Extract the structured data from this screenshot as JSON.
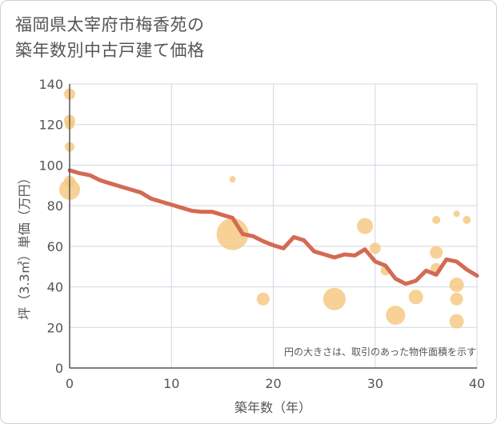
{
  "chart_data": {
    "type": "scatter",
    "title": [
      "福岡県太宰府市梅香苑の",
      "築年数別中古戸建て価格"
    ],
    "xlabel": "築年数（年）",
    "ylabel": "坪（3.3㎡）単価（万円）",
    "xlim": [
      0,
      40
    ],
    "ylim": [
      0,
      140
    ],
    "xticks": [
      0,
      10,
      20,
      30,
      40
    ],
    "yticks": [
      0,
      20,
      40,
      60,
      80,
      100,
      120,
      140
    ],
    "grid": true,
    "note": "円の大きさは、取引のあった物件面積を示す",
    "colors": {
      "bubble": "#f5c77e",
      "line": "#d46a53",
      "grid": "#cfd8e3",
      "axis": "#555555"
    },
    "bubbles": [
      {
        "x": 0,
        "y": 135,
        "size": 5
      },
      {
        "x": 0,
        "y": 122,
        "size": 5
      },
      {
        "x": 0,
        "y": 120,
        "size": 4
      },
      {
        "x": 0,
        "y": 109,
        "size": 4
      },
      {
        "x": 0,
        "y": 92,
        "size": 5
      },
      {
        "x": 0,
        "y": 88,
        "size": 11
      },
      {
        "x": 16,
        "y": 93,
        "size": 2
      },
      {
        "x": 16,
        "y": 66,
        "size": 18
      },
      {
        "x": 19,
        "y": 34,
        "size": 6
      },
      {
        "x": 26,
        "y": 34,
        "size": 12
      },
      {
        "x": 29,
        "y": 70,
        "size": 8
      },
      {
        "x": 30,
        "y": 59,
        "size": 5
      },
      {
        "x": 31,
        "y": 48,
        "size": 4
      },
      {
        "x": 32,
        "y": 26,
        "size": 10
      },
      {
        "x": 34,
        "y": 35,
        "size": 7
      },
      {
        "x": 36,
        "y": 73,
        "size": 3
      },
      {
        "x": 36,
        "y": 57,
        "size": 6
      },
      {
        "x": 36,
        "y": 49,
        "size": 5
      },
      {
        "x": 38,
        "y": 76,
        "size": 2
      },
      {
        "x": 38,
        "y": 41,
        "size": 7
      },
      {
        "x": 38,
        "y": 34,
        "size": 6
      },
      {
        "x": 38,
        "y": 23,
        "size": 7
      },
      {
        "x": 39,
        "y": 73,
        "size": 3
      }
    ],
    "trend": {
      "x": [
        0,
        1,
        2,
        3,
        4,
        5,
        6,
        7,
        8,
        9,
        10,
        11,
        12,
        13,
        14,
        15,
        16,
        17,
        18,
        19,
        20,
        21,
        22,
        23,
        24,
        25,
        26,
        27,
        28,
        29,
        30,
        31,
        32,
        33,
        34,
        35,
        36,
        37,
        38,
        39,
        40
      ],
      "y": [
        97.5,
        96,
        95,
        92.5,
        91,
        89.5,
        88,
        86.5,
        83.5,
        82,
        80.5,
        79,
        77.5,
        77,
        77,
        75.5,
        74,
        66,
        65,
        62.5,
        60.5,
        59,
        64.5,
        63,
        57.5,
        56,
        54.5,
        56,
        55.5,
        58.5,
        52.5,
        50.5,
        44,
        41.5,
        43,
        48,
        46,
        53.5,
        52.5,
        48.5,
        45.5
      ]
    }
  }
}
